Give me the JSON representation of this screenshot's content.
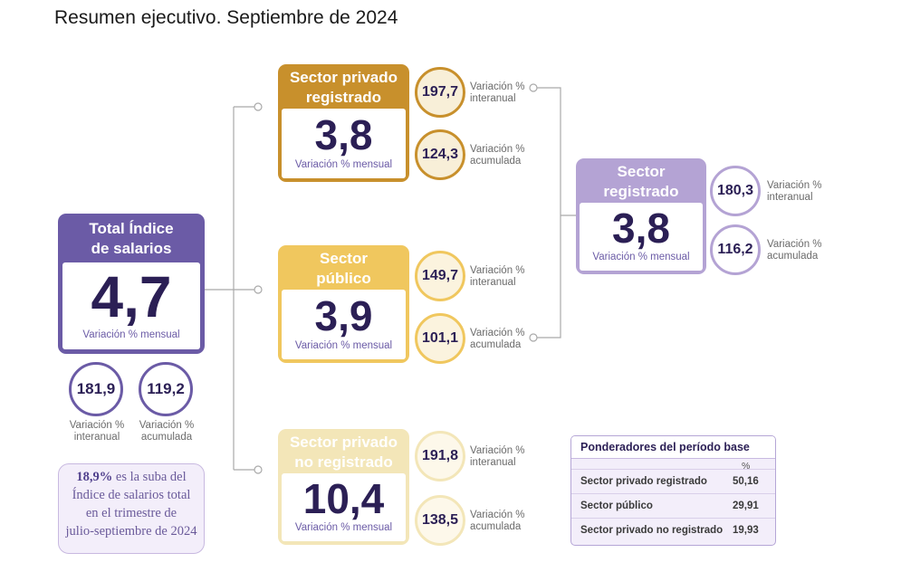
{
  "title": "Resumen ejecutivo. Septiembre de 2024",
  "total": {
    "heading_line1": "Total Índice",
    "heading_line2": "de salarios",
    "value": "4,7",
    "caption": "Variación % mensual",
    "interanual": {
      "value": "181,9",
      "label_line1": "Variación %",
      "label_line2": "interanual"
    },
    "acumulada": {
      "value": "119,2",
      "label_line1": "Variación %",
      "label_line2": "acumulada"
    }
  },
  "privado_registrado": {
    "heading_line1": "Sector privado",
    "heading_line2": "registrado",
    "value": "3,8",
    "caption": "Variación % mensual",
    "interanual": {
      "value": "197,7",
      "label_line1": "Variación %",
      "label_line2": "interanual"
    },
    "acumulada": {
      "value": "124,3",
      "label_line1": "Variación %",
      "label_line2": "acumulada"
    }
  },
  "publico": {
    "heading_line1": "Sector",
    "heading_line2": "público",
    "value": "3,9",
    "caption": "Variación % mensual",
    "interanual": {
      "value": "149,7",
      "label_line1": "Variación %",
      "label_line2": "interanual"
    },
    "acumulada": {
      "value": "101,1",
      "label_line1": "Variación %",
      "label_line2": "acumulada"
    }
  },
  "privado_no_registrado": {
    "heading_line1": "Sector privado",
    "heading_line2": "no registrado",
    "value": "10,4",
    "caption": "Variación % mensual",
    "interanual": {
      "value": "191,8",
      "label_line1": "Variación %",
      "label_line2": "interanual"
    },
    "acumulada": {
      "value": "138,5",
      "label_line1": "Variación %",
      "label_line2": "acumulada"
    }
  },
  "registrado": {
    "heading_line1": "Sector",
    "heading_line2": "registrado",
    "value": "3,8",
    "caption": "Variación % mensual",
    "interanual": {
      "value": "180,3",
      "label_line1": "Variación %",
      "label_line2": "interanual"
    },
    "acumulada": {
      "value": "116,2",
      "label_line1": "Variación %",
      "label_line2": "acumulada"
    }
  },
  "note": {
    "highlight": "18,9%",
    "line1_rest": " es la suba del",
    "line2": "Índice de salarios total",
    "line3": "en el trimestre de",
    "line4": "julio-septiembre de 2024"
  },
  "ponderadores": {
    "title": "Ponderadores del período base",
    "unit": "%",
    "rows": [
      {
        "label": "Sector privado registrado",
        "value": "50,16"
      },
      {
        "label": "Sector público",
        "value": "29,91"
      },
      {
        "label": "Sector privado no registrado",
        "value": "19,93"
      }
    ]
  },
  "colors": {
    "purple_dark": "#6b5ba6",
    "purple_light": "#b4a3d4",
    "gold_dark": "#c8902c",
    "gold_light": "#f0c75e",
    "cream": "#f3e6b8",
    "text_dark": "#2b1f55"
  }
}
